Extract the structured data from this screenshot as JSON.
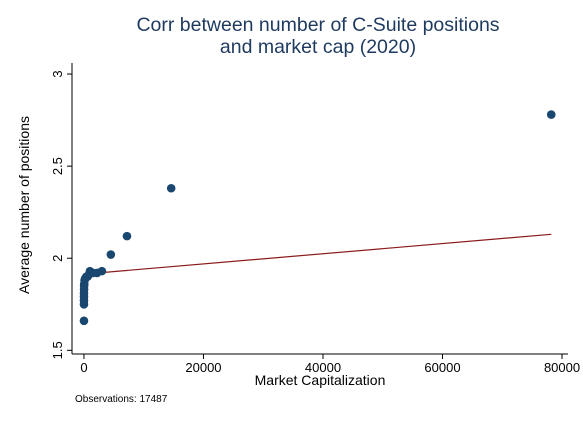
{
  "chart_data": {
    "type": "scatter",
    "title_lines": [
      "Corr between number of C-Suite positions",
      "and market cap (2020)"
    ],
    "xlabel": "Market Capitalization",
    "ylabel": "Average number of positions",
    "xlim": [
      -2000,
      81000
    ],
    "ylim": [
      1.48,
      3.06
    ],
    "xticks": [
      0,
      20000,
      40000,
      60000,
      80000
    ],
    "xtick_labels": [
      "0",
      "20000",
      "40000",
      "60000",
      "80000"
    ],
    "yticks": [
      1.5,
      2,
      2.5,
      3
    ],
    "ytick_labels": [
      "1.5",
      "2",
      "2.5",
      "3"
    ],
    "grid": false,
    "series": [
      {
        "name": "Average number of positions",
        "kind": "scatter",
        "color": "#1a476f",
        "points": [
          {
            "x": 78200,
            "y": 2.78
          },
          {
            "x": 14600,
            "y": 2.38
          },
          {
            "x": 7200,
            "y": 2.12
          },
          {
            "x": 4500,
            "y": 2.02
          },
          {
            "x": 3000,
            "y": 1.93
          },
          {
            "x": 2200,
            "y": 1.92
          },
          {
            "x": 1500,
            "y": 1.92
          },
          {
            "x": 1000,
            "y": 1.93
          },
          {
            "x": 800,
            "y": 1.91
          },
          {
            "x": 600,
            "y": 1.9
          },
          {
            "x": 400,
            "y": 1.9
          },
          {
            "x": 200,
            "y": 1.89
          },
          {
            "x": 100,
            "y": 1.88
          },
          {
            "x": 50,
            "y": 1.86
          },
          {
            "x": 30,
            "y": 1.85
          },
          {
            "x": 20,
            "y": 1.83
          },
          {
            "x": 10,
            "y": 1.81
          },
          {
            "x": 5,
            "y": 1.79
          },
          {
            "x": 3,
            "y": 1.77
          },
          {
            "x": 2,
            "y": 1.75
          },
          {
            "x": 1,
            "y": 1.66
          }
        ]
      },
      {
        "name": "Fitted values",
        "kind": "line",
        "color": "#8b1a1a",
        "points": [
          {
            "x": 0,
            "y": 1.914
          },
          {
            "x": 78200,
            "y": 2.13
          }
        ]
      }
    ],
    "note": "Observations: 17487"
  }
}
